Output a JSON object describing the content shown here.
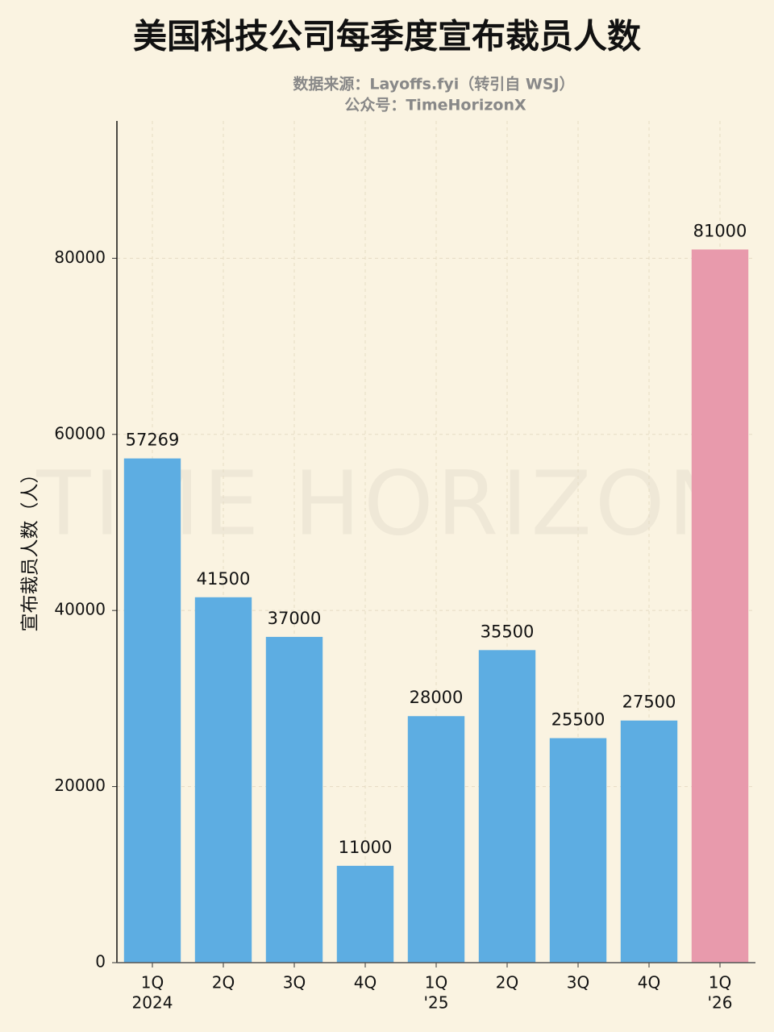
{
  "chart_data": {
    "type": "bar",
    "title": "美国科技公司每季度宣布裁员人数",
    "subtitle": [
      "数据来源：Layoffs.fyi（转引自 WSJ）",
      "公众号：TimeHorizonX"
    ],
    "watermark": "TIME HORIZON",
    "y_label": "宣布裁员人数（人）",
    "categories": [
      [
        "1Q",
        "2024"
      ],
      [
        "2Q"
      ],
      [
        "3Q"
      ],
      [
        "4Q"
      ],
      [
        "1Q",
        "'25"
      ],
      [
        "2Q"
      ],
      [
        "3Q"
      ],
      [
        "4Q"
      ],
      [
        "1Q",
        "'26"
      ]
    ],
    "values": [
      57269,
      41500,
      37000,
      11000,
      28000,
      35500,
      25500,
      27500,
      81000
    ],
    "colors": [
      "#5dade2",
      "#5dade2",
      "#5dade2",
      "#5dade2",
      "#5dade2",
      "#5dade2",
      "#5dade2",
      "#5dade2",
      "#e89aac"
    ],
    "ylim": [
      0,
      95600
    ],
    "yticks": [
      0,
      20000,
      40000,
      60000,
      80000
    ],
    "grid": true
  }
}
